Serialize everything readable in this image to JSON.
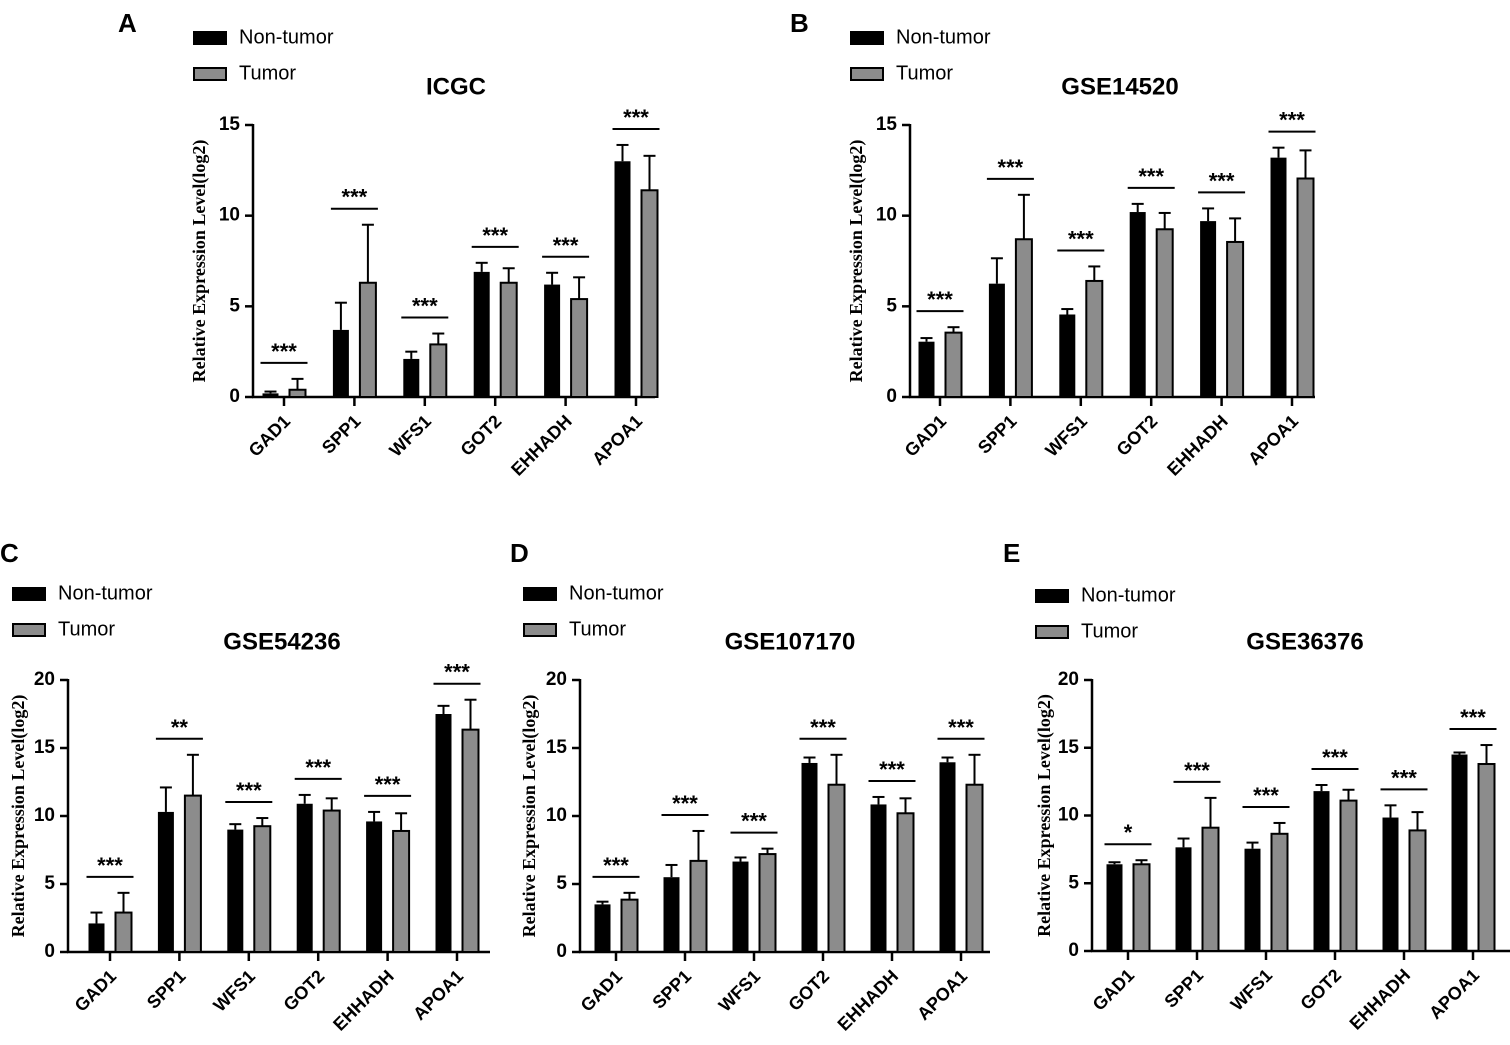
{
  "figure": {
    "legend": {
      "nontumor": "Non-tumor",
      "tumor": "Tumor"
    },
    "colors": {
      "nontumor": "#000000",
      "tumor": "#8c8c8c",
      "axis": "#000000"
    }
  },
  "chart_data": [
    {
      "panel": "A",
      "type": "bar",
      "title": "ICGC",
      "ylabel": "Relative Expression Level(log2)",
      "xlabel": "",
      "ylim": [
        0,
        15
      ],
      "yticks": [
        "0",
        "5",
        "10",
        "15"
      ],
      "categories": [
        "GAD1",
        "SPP1",
        "WFS1",
        "GOT2",
        "EHHADH",
        "APOA1"
      ],
      "series": [
        {
          "name": "Non-tumor",
          "values": [
            0.2,
            3.7,
            2.1,
            6.9,
            6.2,
            13.0
          ],
          "errors": [
            0.1,
            1.5,
            0.4,
            0.5,
            0.65,
            0.9
          ]
        },
        {
          "name": "Tumor",
          "values": [
            0.4,
            6.3,
            2.9,
            6.3,
            5.4,
            11.4
          ],
          "errors": [
            0.6,
            3.2,
            0.6,
            0.8,
            1.2,
            1.9
          ]
        }
      ],
      "significance": [
        "***",
        "***",
        "***",
        "***",
        "***",
        "***"
      ]
    },
    {
      "panel": "B",
      "type": "bar",
      "title": "GSE14520",
      "ylabel": "Relative Expression Level(log2)",
      "xlabel": "",
      "ylim": [
        0,
        15
      ],
      "yticks": [
        "0",
        "5",
        "10",
        "15"
      ],
      "categories": [
        "GAD1",
        "SPP1",
        "WFS1",
        "GOT2",
        "EHHADH",
        "APOA1"
      ],
      "series": [
        {
          "name": "Non-tumor",
          "values": [
            3.05,
            6.25,
            4.55,
            10.2,
            9.7,
            13.2
          ],
          "errors": [
            0.2,
            1.4,
            0.3,
            0.45,
            0.7,
            0.55
          ]
        },
        {
          "name": "Tumor",
          "values": [
            3.55,
            8.7,
            6.4,
            9.25,
            8.55,
            12.05
          ],
          "errors": [
            0.3,
            2.45,
            0.8,
            0.9,
            1.3,
            1.55
          ]
        }
      ],
      "significance": [
        "***",
        "***",
        "***",
        "***",
        "***",
        "***"
      ]
    },
    {
      "panel": "C",
      "type": "bar",
      "title": "GSE54236",
      "ylabel": "Relative Expression Level(log2)",
      "xlabel": "",
      "ylim": [
        0,
        20
      ],
      "yticks": [
        "0",
        "5",
        "10",
        "15",
        "20"
      ],
      "categories": [
        "GAD1",
        "SPP1",
        "WFS1",
        "GOT2",
        "EHHADH",
        "APOA1"
      ],
      "series": [
        {
          "name": "Non-tumor",
          "values": [
            2.1,
            10.3,
            9.0,
            10.9,
            9.6,
            17.5
          ],
          "errors": [
            0.8,
            1.8,
            0.4,
            0.65,
            0.7,
            0.6
          ]
        },
        {
          "name": "Tumor",
          "values": [
            2.9,
            11.5,
            9.25,
            10.4,
            8.9,
            16.35
          ],
          "errors": [
            1.45,
            3.0,
            0.6,
            0.9,
            1.3,
            2.2
          ]
        }
      ],
      "significance": [
        "***",
        "**",
        "***",
        "***",
        "***",
        "***"
      ]
    },
    {
      "panel": "D",
      "type": "bar",
      "title": "GSE107170",
      "ylabel": "Relative Expression Level(log2)",
      "xlabel": "",
      "ylim": [
        0,
        20
      ],
      "yticks": [
        "0",
        "5",
        "10",
        "15",
        "20"
      ],
      "categories": [
        "GAD1",
        "SPP1",
        "WFS1",
        "GOT2",
        "EHHADH",
        "APOA1"
      ],
      "series": [
        {
          "name": "Non-tumor",
          "values": [
            3.5,
            5.5,
            6.65,
            13.9,
            10.85,
            13.95
          ],
          "errors": [
            0.2,
            0.9,
            0.3,
            0.4,
            0.55,
            0.35
          ]
        },
        {
          "name": "Tumor",
          "values": [
            3.85,
            6.7,
            7.2,
            12.3,
            10.2,
            12.3
          ],
          "errors": [
            0.5,
            2.2,
            0.4,
            2.2,
            1.1,
            2.2
          ]
        }
      ],
      "significance": [
        "***",
        "***",
        "***",
        "***",
        "***",
        "***"
      ]
    },
    {
      "panel": "E",
      "type": "bar",
      "title": "GSE36376",
      "ylabel": "Relative Expression Level(log2)",
      "xlabel": "",
      "ylim": [
        0,
        20
      ],
      "yticks": [
        "0",
        "5",
        "10",
        "15",
        "20"
      ],
      "categories": [
        "GAD1",
        "SPP1",
        "WFS1",
        "GOT2",
        "EHHADH",
        "APOA1"
      ],
      "series": [
        {
          "name": "Non-tumor",
          "values": [
            6.4,
            7.65,
            7.55,
            11.8,
            9.85,
            14.5
          ],
          "errors": [
            0.15,
            0.65,
            0.45,
            0.45,
            0.9,
            0.15
          ]
        },
        {
          "name": "Tumor",
          "values": [
            6.4,
            9.1,
            8.65,
            11.1,
            8.9,
            13.8
          ],
          "errors": [
            0.3,
            2.2,
            0.8,
            0.8,
            1.35,
            1.4
          ]
        }
      ],
      "significance": [
        "*",
        "***",
        "***",
        "***",
        "***",
        "***"
      ]
    }
  ]
}
